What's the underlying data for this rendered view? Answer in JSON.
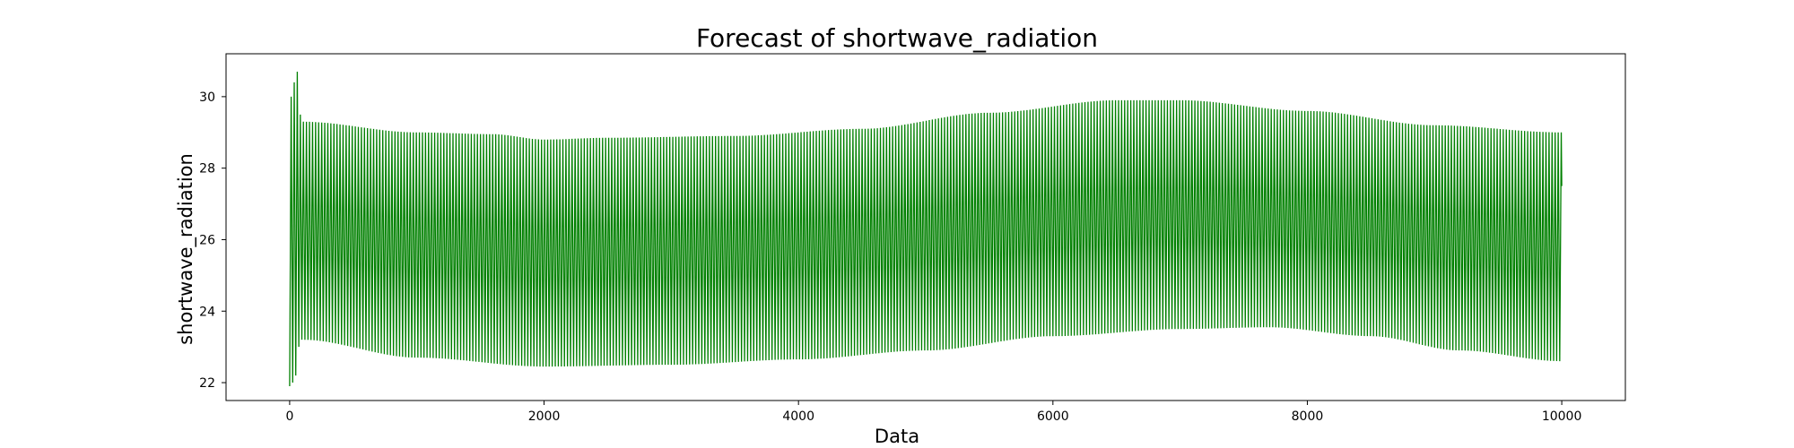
{
  "chart_data": {
    "type": "line",
    "title": "Forecast of shortwave_radiation",
    "xlabel": "Data",
    "ylabel": "shortwave_radiation",
    "xlim": [
      -500,
      10500
    ],
    "ylim": [
      21.5,
      31.2
    ],
    "x_ticks": [
      0,
      2000,
      4000,
      6000,
      8000,
      10000
    ],
    "y_ticks": [
      22,
      24,
      26,
      28,
      30
    ],
    "x_tick_labels": [
      "0",
      "2000",
      "4000",
      "6000",
      "8000",
      "10000"
    ],
    "y_tick_labels": [
      "22",
      "24",
      "26",
      "28",
      "30"
    ],
    "grid": false,
    "legend": "none",
    "series": [
      {
        "name": "shortwave_radiation",
        "color": "#008000",
        "x_range": [
          0,
          10000
        ],
        "oscillation_period": 24,
        "initial_spikes": [
          {
            "x": 0,
            "low": 21.9,
            "high": 30.0
          },
          {
            "x": 24,
            "low": 22.0,
            "high": 30.4
          },
          {
            "x": 48,
            "low": 22.2,
            "high": 30.7
          },
          {
            "x": 72,
            "low": 23.0,
            "high": 29.5
          }
        ],
        "upper_envelope": [
          {
            "x": 100,
            "y": 29.3
          },
          {
            "x": 1000,
            "y": 29.0
          },
          {
            "x": 1600,
            "y": 28.95
          },
          {
            "x": 2000,
            "y": 28.8
          },
          {
            "x": 2500,
            "y": 28.85
          },
          {
            "x": 3500,
            "y": 28.9
          },
          {
            "x": 4500,
            "y": 29.1
          },
          {
            "x": 5500,
            "y": 29.55
          },
          {
            "x": 6500,
            "y": 29.9
          },
          {
            "x": 7000,
            "y": 29.9
          },
          {
            "x": 8000,
            "y": 29.6
          },
          {
            "x": 9000,
            "y": 29.2
          },
          {
            "x": 10000,
            "y": 29.0
          }
        ],
        "lower_envelope": [
          {
            "x": 100,
            "y": 23.2
          },
          {
            "x": 1000,
            "y": 22.7
          },
          {
            "x": 2000,
            "y": 22.45
          },
          {
            "x": 3000,
            "y": 22.5
          },
          {
            "x": 4000,
            "y": 22.65
          },
          {
            "x": 5000,
            "y": 22.9
          },
          {
            "x": 6000,
            "y": 23.3
          },
          {
            "x": 7000,
            "y": 23.5
          },
          {
            "x": 7700,
            "y": 23.55
          },
          {
            "x": 8500,
            "y": 23.3
          },
          {
            "x": 9200,
            "y": 22.9
          },
          {
            "x": 10000,
            "y": 22.6
          }
        ],
        "last_value": 27.5
      }
    ]
  }
}
